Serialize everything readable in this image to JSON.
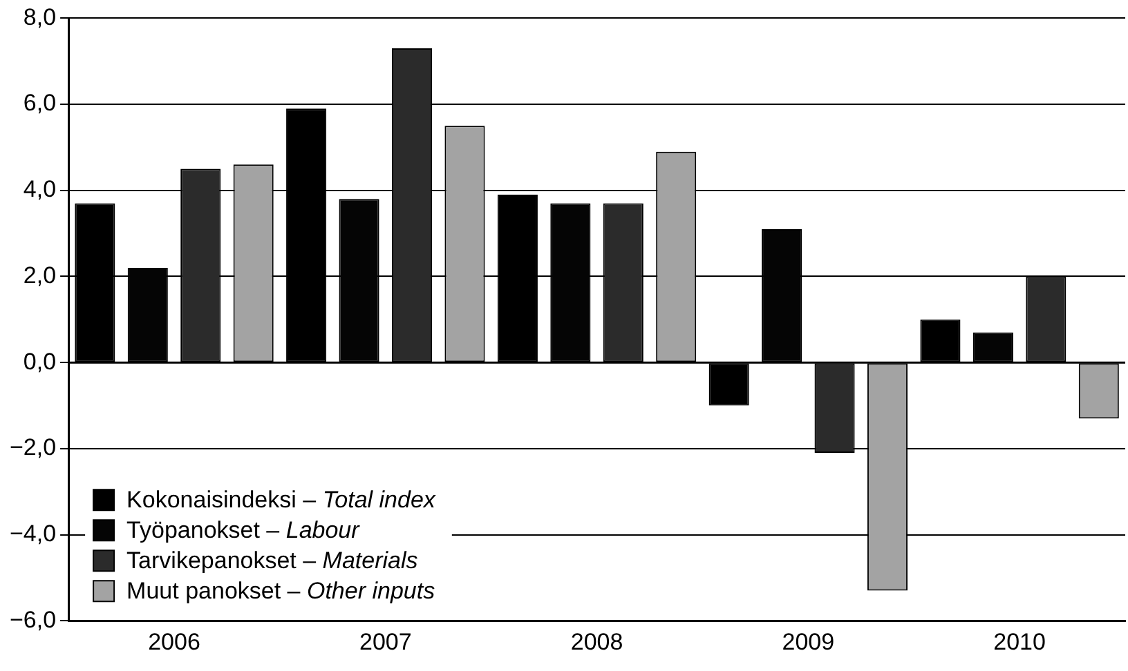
{
  "chart_data": {
    "type": "bar",
    "categories": [
      "2006",
      "2007",
      "2008",
      "2009",
      "2010"
    ],
    "series": [
      {
        "name": "Kokonaisindeksi – Total index",
        "color": "#000000",
        "values": [
          3.7,
          5.9,
          3.9,
          -1.0,
          1.0
        ]
      },
      {
        "name": "Työpanokset – Labour",
        "color": "#050505",
        "values": [
          2.2,
          3.8,
          3.7,
          3.1,
          0.7
        ]
      },
      {
        "name": "Tarvikepanokset – Materials",
        "color": "#2b2b2b",
        "values": [
          4.5,
          7.3,
          3.7,
          -2.1,
          2.0
        ]
      },
      {
        "name": "Muut panokset – Other inputs",
        "color": "#a3a3a3",
        "values": [
          4.6,
          5.5,
          4.9,
          -5.3,
          -1.3
        ]
      }
    ],
    "ylim": [
      -6,
      8
    ],
    "yticks": [
      {
        "value": -6,
        "label": "−6,0"
      },
      {
        "value": -4,
        "label": "−4,0"
      },
      {
        "value": -2,
        "label": "−2,0"
      },
      {
        "value": 0,
        "label": "0,0"
      },
      {
        "value": 2,
        "label": "2,0"
      },
      {
        "value": 4,
        "label": "4,0"
      },
      {
        "value": 6,
        "label": "6,0"
      },
      {
        "value": 8,
        "label": "8,0"
      }
    ],
    "grid": "y",
    "legend": "bottom left"
  }
}
